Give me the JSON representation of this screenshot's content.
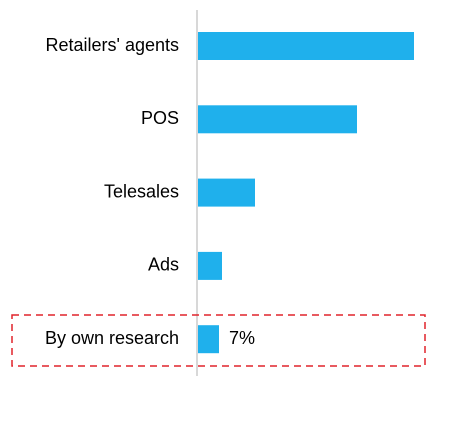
{
  "chart_data": {
    "type": "barh",
    "categories": [
      "Retailers' agents",
      "POS",
      "Telesales",
      "Ads",
      "By own research"
    ],
    "values": [
      72,
      53,
      19,
      8,
      7
    ],
    "value_labels": [
      null,
      null,
      null,
      null,
      "7%"
    ],
    "color": "#1fb0ec"
  }
}
